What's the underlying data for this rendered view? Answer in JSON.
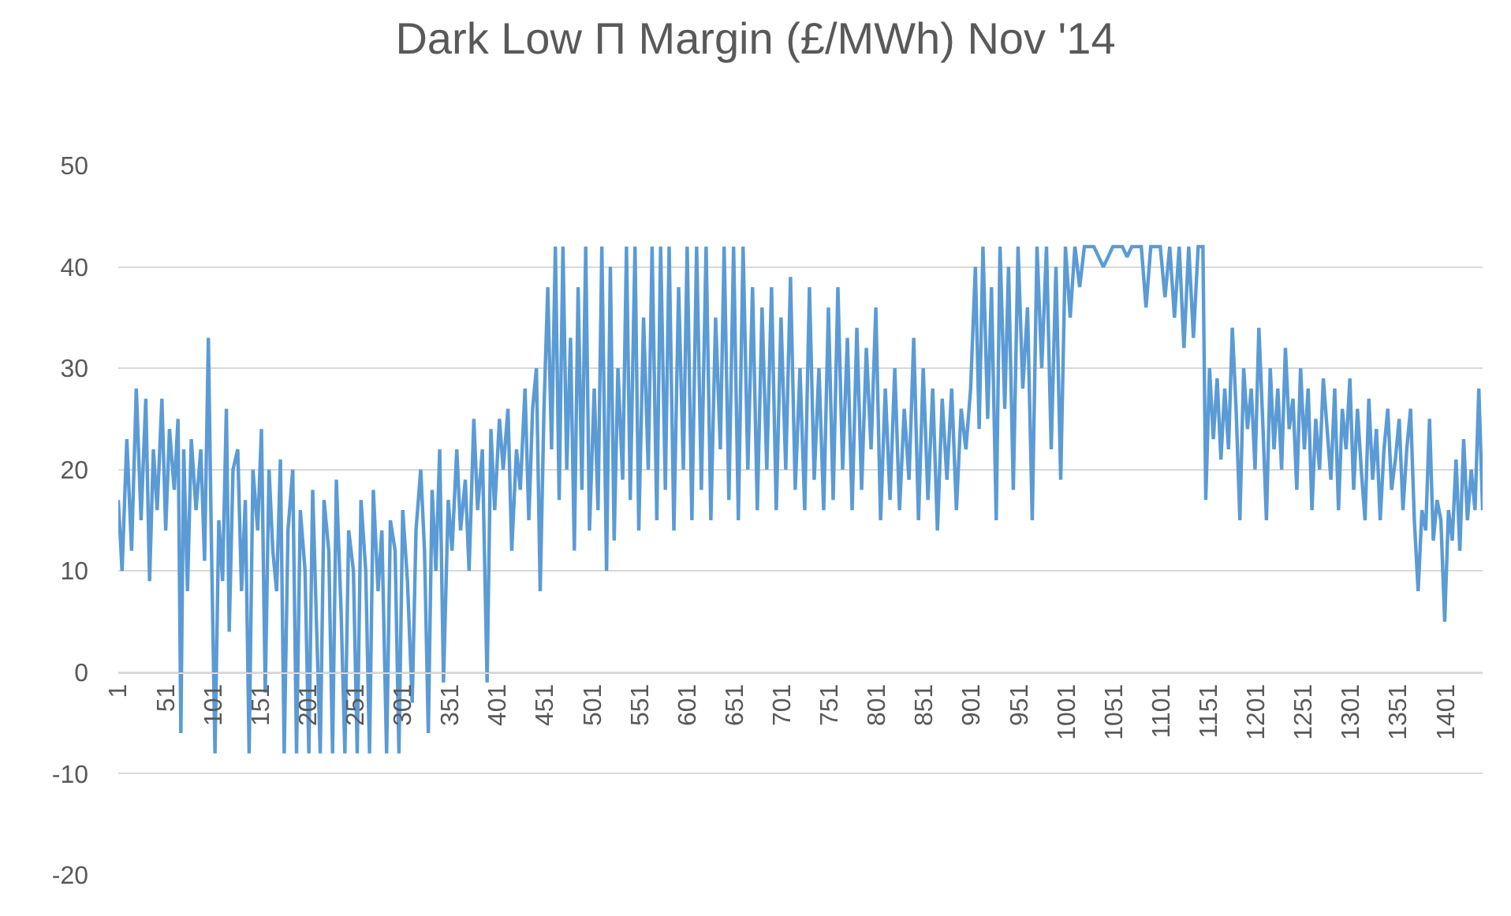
{
  "chart_data": {
    "type": "line",
    "title": "Dark Low Π Margin (£/MWh) Nov '14",
    "x": [
      1,
      5,
      10,
      15,
      20,
      25,
      30,
      34,
      38,
      42,
      47,
      51,
      55,
      60,
      64,
      67,
      70,
      74,
      78,
      83,
      88,
      92,
      96,
      99,
      103,
      107,
      111,
      115,
      118,
      122,
      127,
      131,
      135,
      139,
      143,
      148,
      152,
      156,
      160,
      164,
      168,
      172,
      176,
      180,
      185,
      189,
      193,
      198,
      202,
      206,
      210,
      214,
      218,
      223,
      227,
      231,
      236,
      240,
      244,
      249,
      253,
      257,
      262,
      266,
      270,
      275,
      279,
      284,
      288,
      293,
      297,
      301,
      306,
      311,
      315,
      320,
      324,
      328,
      332,
      336,
      340,
      344,
      349,
      353,
      358,
      362,
      367,
      371,
      376,
      380,
      385,
      390,
      394,
      398,
      403,
      407,
      412,
      416,
      421,
      425,
      430,
      434,
      438,
      442,
      446,
      450,
      454,
      458,
      462,
      466,
      470,
      474,
      478,
      482,
      486,
      490,
      494,
      498,
      503,
      507,
      511,
      516,
      520,
      524,
      528,
      533,
      537,
      541,
      546,
      550,
      555,
      560,
      564,
      569,
      573,
      578,
      582,
      587,
      592,
      597,
      601,
      606,
      611,
      616,
      621,
      626,
      631,
      636,
      640,
      645,
      650,
      655,
      660,
      665,
      670,
      675,
      680,
      685,
      690,
      695,
      700,
      705,
      710,
      715,
      720,
      725,
      730,
      735,
      740,
      745,
      750,
      755,
      760,
      765,
      770,
      775,
      780,
      785,
      790,
      795,
      800,
      805,
      810,
      815,
      820,
      825,
      830,
      835,
      840,
      845,
      850,
      855,
      860,
      865,
      870,
      875,
      880,
      885,
      890,
      895,
      900,
      905,
      909,
      913,
      918,
      922,
      927,
      931,
      936,
      940,
      945,
      950,
      955,
      960,
      965,
      970,
      975,
      980,
      985,
      990,
      995,
      1000,
      1005,
      1010,
      1015,
      1020,
      1030,
      1040,
      1050,
      1060,
      1065,
      1070,
      1080,
      1085,
      1090,
      1100,
      1105,
      1110,
      1115,
      1120,
      1125,
      1130,
      1135,
      1140,
      1145,
      1148,
      1152,
      1156,
      1160,
      1164,
      1168,
      1172,
      1176,
      1180,
      1184,
      1188,
      1192,
      1196,
      1200,
      1204,
      1208,
      1212,
      1216,
      1220,
      1224,
      1228,
      1232,
      1236,
      1240,
      1244,
      1248,
      1252,
      1256,
      1260,
      1264,
      1268,
      1272,
      1276,
      1280,
      1284,
      1288,
      1292,
      1296,
      1300,
      1304,
      1308,
      1312,
      1316,
      1320,
      1324,
      1328,
      1332,
      1336,
      1340,
      1344,
      1348,
      1352,
      1356,
      1360,
      1364,
      1368,
      1372,
      1376,
      1380,
      1384,
      1388,
      1392,
      1396,
      1400,
      1404,
      1408,
      1412,
      1416,
      1420,
      1424,
      1428,
      1432,
      1436,
      1440
    ],
    "series": [
      {
        "color": "#5b9bd5",
        "values": [
          17,
          10,
          23,
          12,
          28,
          15,
          27,
          9,
          22,
          16,
          27,
          14,
          24,
          18,
          25,
          -6,
          22,
          8,
          23,
          16,
          22,
          11,
          33,
          14,
          -8,
          15,
          9,
          26,
          4,
          20,
          22,
          8,
          17,
          -8,
          20,
          14,
          24,
          -2,
          20,
          12,
          8,
          21,
          -8,
          14,
          20,
          -8,
          16,
          10,
          -8,
          18,
          5,
          -8,
          17,
          12,
          -8,
          19,
          6,
          -8,
          14,
          10,
          -8,
          17,
          10,
          -8,
          18,
          8,
          14,
          -8,
          15,
          12,
          -8,
          16,
          9,
          -3,
          14,
          20,
          12,
          -6,
          18,
          10,
          22,
          -1,
          17,
          12,
          22,
          14,
          19,
          10,
          25,
          16,
          22,
          -1,
          24,
          16,
          25,
          20,
          26,
          12,
          22,
          18,
          28,
          15,
          26,
          30,
          8,
          26,
          38,
          22,
          42,
          17,
          42,
          20,
          33,
          12,
          38,
          18,
          42,
          14,
          28,
          16,
          42,
          10,
          40,
          13,
          30,
          19,
          42,
          17,
          42,
          14,
          35,
          20,
          42,
          15,
          42,
          18,
          42,
          14,
          38,
          20,
          42,
          15,
          42,
          18,
          42,
          15,
          35,
          22,
          42,
          17,
          42,
          15,
          42,
          20,
          38,
          16,
          36,
          20,
          38,
          16,
          35,
          20,
          39,
          18,
          30,
          16,
          38,
          19,
          30,
          16,
          36,
          17,
          38,
          20,
          33,
          16,
          34,
          18,
          32,
          22,
          36,
          15,
          28,
          17,
          30,
          16,
          26,
          19,
          33,
          15,
          30,
          17,
          28,
          14,
          27,
          19,
          28,
          16,
          26,
          22,
          28,
          40,
          24,
          42,
          25,
          38,
          15,
          42,
          26,
          40,
          18,
          42,
          28,
          36,
          15,
          42,
          30,
          42,
          22,
          40,
          19,
          42,
          35,
          42,
          38,
          42,
          42,
          40,
          42,
          42,
          41,
          42,
          42,
          36,
          42,
          42,
          37,
          42,
          35,
          42,
          32,
          42,
          33,
          42,
          42,
          17,
          30,
          23,
          29,
          21,
          28,
          22,
          34,
          26,
          15,
          30,
          24,
          28,
          20,
          34,
          25,
          15,
          30,
          22,
          28,
          20,
          32,
          24,
          27,
          18,
          30,
          22,
          28,
          16,
          25,
          20,
          29,
          24,
          19,
          28,
          16,
          26,
          22,
          29,
          18,
          26,
          20,
          15,
          27,
          19,
          24,
          15,
          22,
          26,
          18,
          21,
          25,
          16,
          22,
          26,
          15,
          8,
          16,
          14,
          25,
          13,
          17,
          15,
          5,
          16,
          13,
          21,
          12,
          23,
          15,
          20,
          16,
          28,
          16
        ]
      }
    ],
    "xlim": [
      1,
      1440
    ],
    "xticks": [
      1,
      51,
      101,
      151,
      201,
      251,
      301,
      351,
      401,
      451,
      501,
      551,
      601,
      651,
      701,
      751,
      801,
      851,
      901,
      951,
      1001,
      1051,
      1101,
      1151,
      1201,
      1251,
      1301,
      1351,
      1401
    ],
    "ylim": [
      -20,
      50
    ],
    "yticks": [
      -20,
      -10,
      0,
      10,
      20,
      30,
      40,
      50
    ],
    "grid": "y",
    "marker": "none",
    "line_style": "solid"
  }
}
